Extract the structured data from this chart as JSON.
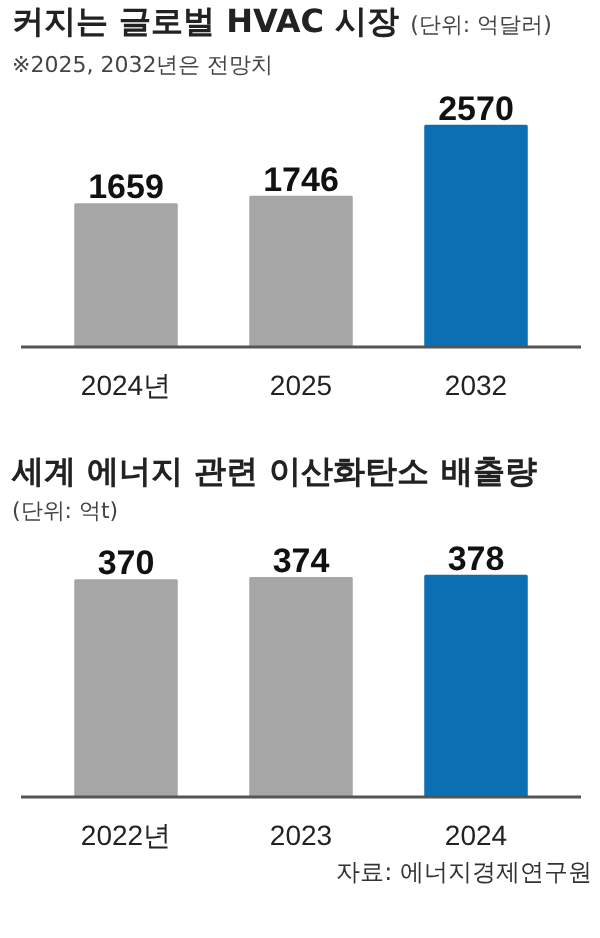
{
  "chart_data": [
    {
      "type": "bar",
      "title": "커지는 글로벌 HVAC 시장",
      "subtitle": "(단위: 억달러)",
      "annotations": [
        "※2025, 2032년은 전망치"
      ],
      "categories": [
        "2024년",
        "2025",
        "2032"
      ],
      "values": [
        1659,
        1746,
        2570
      ],
      "colors": [
        "#a6a6a6",
        "#a6a6a6",
        "#0b6fb3"
      ],
      "data_labels": true,
      "tick_labels": "x",
      "grid": false
    },
    {
      "type": "bar",
      "title": "세계 에너지 관련 이산화탄소 배출량",
      "subtitle": "(단위: 억t)",
      "annotations": [
        "자료: 에너지경제연구원"
      ],
      "categories": [
        "2022년",
        "2023",
        "2024"
      ],
      "values": [
        370,
        374,
        378
      ],
      "colors": [
        "#a6a6a6",
        "#a6a6a6",
        "#0b6fb3"
      ],
      "data_labels": true,
      "tick_labels": "x",
      "grid": false
    }
  ]
}
